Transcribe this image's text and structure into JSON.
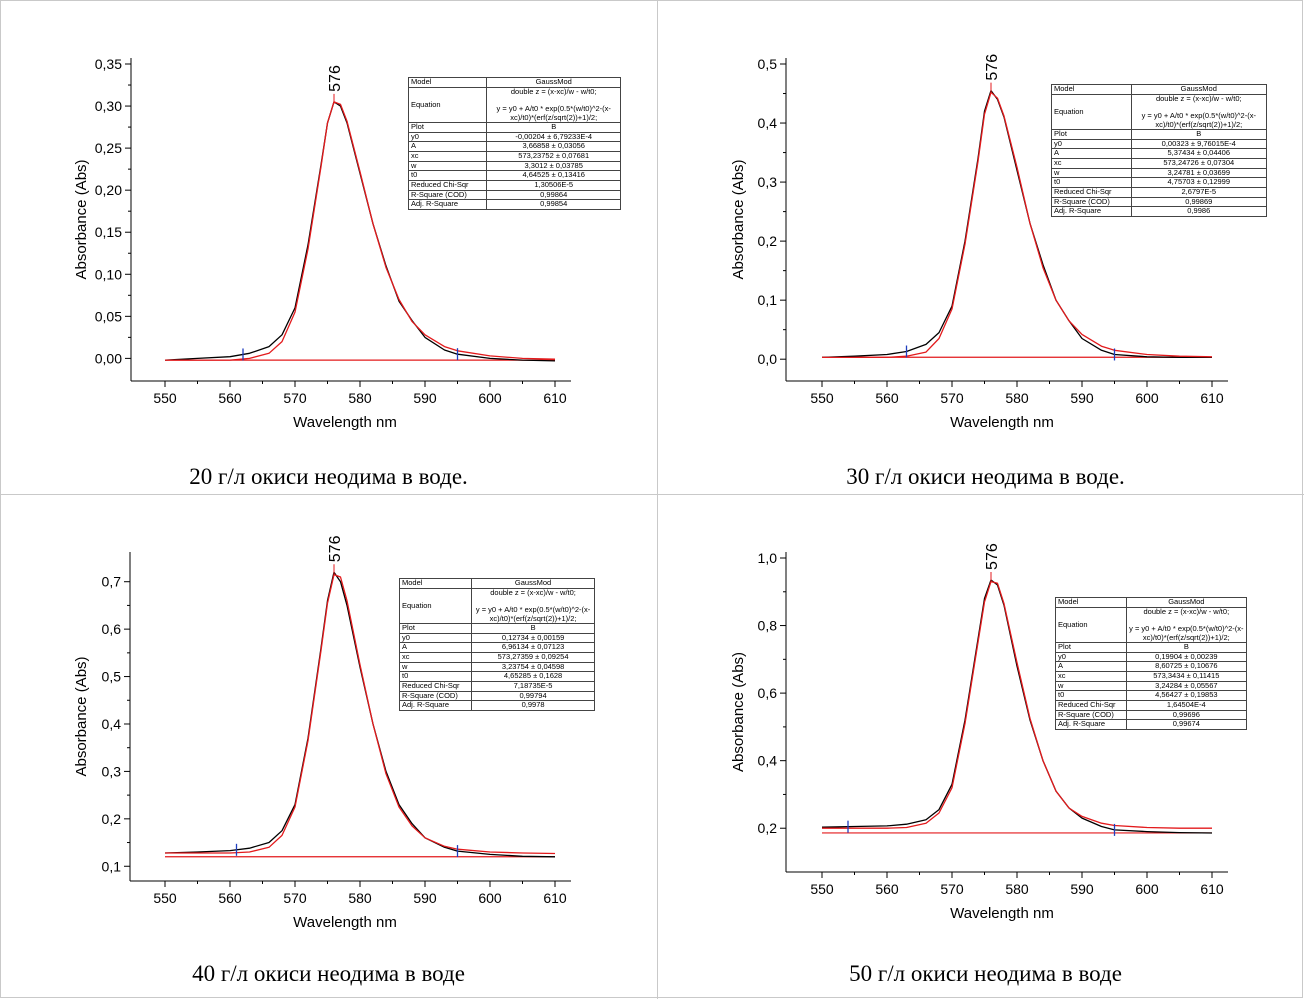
{
  "chart_data": [
    {
      "type": "line",
      "caption": "20 г/л окиси неодима в воде.",
      "xlabel": "Wavelength nm",
      "ylabel": "Absorbance (Abs)",
      "xlim": [
        550,
        610
      ],
      "ylim": [
        -0.015,
        0.35
      ],
      "xticks": [
        "550",
        "560",
        "570",
        "580",
        "590",
        "600",
        "610"
      ],
      "yticks": [
        "0,00",
        "0,05",
        "0,10",
        "0,15",
        "0,20",
        "0,25",
        "0,30",
        "0,35"
      ],
      "ytick_values": [
        0,
        0.05,
        0.1,
        0.15,
        0.2,
        0.25,
        0.3,
        0.35
      ],
      "peak_label": "576",
      "peak_x": 576,
      "baseline": -0.00204,
      "baseline_x": [
        562,
        595
      ],
      "series": [
        {
          "color": "#000000",
          "x": [
            550,
            555,
            560,
            563,
            566,
            568,
            570,
            572,
            574,
            575,
            576,
            577,
            578,
            580,
            582,
            584,
            586,
            588,
            590,
            593,
            595,
            600,
            605,
            610
          ],
          "y": [
            -0.002,
            0.0,
            0.002,
            0.006,
            0.014,
            0.028,
            0.06,
            0.135,
            0.23,
            0.28,
            0.305,
            0.3,
            0.28,
            0.22,
            0.16,
            0.11,
            0.068,
            0.045,
            0.025,
            0.01,
            0.005,
            0.0,
            -0.002,
            -0.003
          ]
        },
        {
          "color": "#e31a1c",
          "x": [
            550,
            560,
            563,
            566,
            568,
            570,
            572,
            574,
            575,
            576,
            577,
            578,
            580,
            582,
            584,
            586,
            588,
            590,
            593,
            595,
            600,
            605,
            610
          ],
          "y": [
            -0.002,
            -0.002,
            0.0,
            0.006,
            0.02,
            0.055,
            0.13,
            0.228,
            0.28,
            0.305,
            0.302,
            0.282,
            0.222,
            0.16,
            0.108,
            0.07,
            0.044,
            0.028,
            0.014,
            0.009,
            0.003,
            0.0,
            -0.001
          ]
        }
      ],
      "fit_table": [
        [
          "Model",
          "GaussMod"
        ],
        [
          "Equation",
          "double z = (x-xc)/w - w/t0;\n\ny = y0 + A/t0 * exp(0.5*(w/t0)^2-(x-xc)/t0)*(erf(z/sqrt(2))+1)/2;"
        ],
        [
          "Plot",
          "B"
        ],
        [
          "y0",
          "-0,00204 ± 6,79233E-4"
        ],
        [
          "A",
          "3,66858 ± 0,03056"
        ],
        [
          "xc",
          "573,23752 ± 0,07681"
        ],
        [
          "w",
          "3,3012 ± 0,03785"
        ],
        [
          "t0",
          "4,64525 ± 0,13416"
        ],
        [
          "Reduced Chi-Sqr",
          "1,30506E-5"
        ],
        [
          "R-Square (COD)",
          "0,99864"
        ],
        [
          "Adj. R-Square",
          "0,99854"
        ]
      ]
    },
    {
      "type": "line",
      "caption": "30 г/л окиси неодима в воде.",
      "xlabel": "Wavelength nm",
      "ylabel": "Absorbance (Abs)",
      "xlim": [
        550,
        610
      ],
      "ylim": [
        -0.02,
        0.5
      ],
      "xticks": [
        "550",
        "560",
        "570",
        "580",
        "590",
        "600",
        "610"
      ],
      "yticks": [
        "0,0",
        "0,1",
        "0,2",
        "0,3",
        "0,4",
        "0,5"
      ],
      "ytick_values": [
        0,
        0.1,
        0.2,
        0.3,
        0.4,
        0.5
      ],
      "peak_label": "576",
      "peak_x": 576,
      "baseline": 0.00323,
      "baseline_x": [
        563,
        595
      ],
      "series": [
        {
          "color": "#000000",
          "x": [
            550,
            555,
            560,
            563,
            566,
            568,
            570,
            572,
            574,
            575,
            576,
            577,
            578,
            580,
            582,
            584,
            586,
            588,
            590,
            593,
            595,
            600,
            605,
            610
          ],
          "y": [
            0.003,
            0.005,
            0.008,
            0.013,
            0.025,
            0.045,
            0.09,
            0.2,
            0.34,
            0.42,
            0.455,
            0.44,
            0.41,
            0.32,
            0.23,
            0.16,
            0.1,
            0.065,
            0.035,
            0.015,
            0.008,
            0.004,
            0.003,
            0.003
          ]
        },
        {
          "color": "#e31a1c",
          "x": [
            550,
            560,
            563,
            566,
            568,
            570,
            572,
            574,
            575,
            576,
            577,
            578,
            580,
            582,
            584,
            586,
            588,
            590,
            593,
            595,
            600,
            605,
            610
          ],
          "y": [
            0.003,
            0.003,
            0.005,
            0.012,
            0.035,
            0.085,
            0.195,
            0.335,
            0.415,
            0.452,
            0.442,
            0.412,
            0.325,
            0.23,
            0.155,
            0.1,
            0.065,
            0.042,
            0.022,
            0.015,
            0.008,
            0.005,
            0.004
          ]
        }
      ],
      "fit_table": [
        [
          "Model",
          "GaussMod"
        ],
        [
          "Equation",
          "double z = (x-xc)/w - w/t0;\n\ny = y0 + A/t0 * exp(0.5*(w/t0)^2-(x-xc)/t0)*(erf(z/sqrt(2))+1)/2;"
        ],
        [
          "Plot",
          "B"
        ],
        [
          "y0",
          "0,00323 ± 9,76015E-4"
        ],
        [
          "A",
          "5,37434 ± 0,04406"
        ],
        [
          "xc",
          "573,24726 ± 0,07304"
        ],
        [
          "w",
          "3,24781 ± 0,03699"
        ],
        [
          "t0",
          "4,75703 ± 0,12999"
        ],
        [
          "Reduced Chi-Sqr",
          "2,6797E-5"
        ],
        [
          "R-Square (COD)",
          "0,99869"
        ],
        [
          "Adj. R-Square",
          "0,9986"
        ]
      ]
    },
    {
      "type": "line",
      "caption": "40 г/л окиси неодима в воде",
      "xlabel": "Wavelength nm",
      "ylabel": "Absorbance (Abs)",
      "xlim": [
        550,
        610
      ],
      "ylim": [
        0.09,
        0.75
      ],
      "xticks": [
        "550",
        "560",
        "570",
        "580",
        "590",
        "600",
        "610"
      ],
      "yticks": [
        "0,1",
        "0,2",
        "0,3",
        "0,4",
        "0,5",
        "0,6",
        "0,7"
      ],
      "ytick_values": [
        0.1,
        0.2,
        0.3,
        0.4,
        0.5,
        0.6,
        0.7
      ],
      "peak_label": "576",
      "peak_x": 576,
      "baseline": 0.12,
      "baseline_x": [
        561,
        595
      ],
      "series": [
        {
          "color": "#000000",
          "x": [
            550,
            555,
            560,
            563,
            566,
            568,
            570,
            572,
            574,
            575,
            576,
            577,
            578,
            580,
            582,
            584,
            586,
            588,
            590,
            593,
            595,
            600,
            605,
            610
          ],
          "y": [
            0.128,
            0.13,
            0.133,
            0.138,
            0.15,
            0.175,
            0.23,
            0.37,
            0.56,
            0.66,
            0.72,
            0.7,
            0.65,
            0.52,
            0.4,
            0.3,
            0.23,
            0.19,
            0.16,
            0.14,
            0.132,
            0.125,
            0.121,
            0.12
          ]
        },
        {
          "color": "#e31a1c",
          "x": [
            550,
            560,
            563,
            566,
            568,
            570,
            572,
            574,
            575,
            576,
            577,
            578,
            580,
            582,
            584,
            586,
            588,
            590,
            593,
            595,
            600,
            605,
            610
          ],
          "y": [
            0.128,
            0.128,
            0.13,
            0.14,
            0.165,
            0.225,
            0.365,
            0.555,
            0.655,
            0.715,
            0.71,
            0.66,
            0.525,
            0.4,
            0.295,
            0.225,
            0.185,
            0.16,
            0.142,
            0.136,
            0.13,
            0.128,
            0.127
          ]
        }
      ],
      "fit_table": [
        [
          "Model",
          "GaussMod"
        ],
        [
          "Equation",
          "double z = (x-xc)/w - w/t0;\n\ny = y0 + A/t0 * exp(0.5*(w/t0)^2-(x-xc)/t0)*(erf(z/sqrt(2))+1)/2;"
        ],
        [
          "Plot",
          "B"
        ],
        [
          "y0",
          "0,12734 ± 0,00159"
        ],
        [
          "A",
          "6,96134 ± 0,07123"
        ],
        [
          "xc",
          "573,27359 ± 0,09254"
        ],
        [
          "w",
          "3,23754 ± 0,04598"
        ],
        [
          "t0",
          "4,65285 ± 0,1628"
        ],
        [
          "Reduced Chi-Sqr",
          "7,18735E-5"
        ],
        [
          "R-Square (COD)",
          "0,99794"
        ],
        [
          "Adj. R-Square",
          "0,9978"
        ]
      ]
    },
    {
      "type": "line",
      "caption": "50 г/л окиси неодима в воде",
      "xlabel": "Wavelength nm",
      "ylabel": "Absorbance (Abs)",
      "xlim": [
        550,
        610
      ],
      "ylim": [
        0.1,
        1.0
      ],
      "xticks": [
        "550",
        "560",
        "570",
        "580",
        "590",
        "600",
        "610"
      ],
      "yticks": [
        "0,2",
        "0,4",
        "0,6",
        "0,8",
        "1,0"
      ],
      "ytick_values": [
        0.2,
        0.4,
        0.6,
        0.8,
        1.0
      ],
      "peak_label": "576",
      "peak_x": 576,
      "baseline": 0.186,
      "baseline_x": [
        554,
        595
      ],
      "series": [
        {
          "color": "#000000",
          "x": [
            550,
            555,
            560,
            563,
            566,
            568,
            570,
            572,
            574,
            575,
            576,
            577,
            578,
            580,
            582,
            584,
            586,
            588,
            590,
            593,
            595,
            600,
            605,
            610
          ],
          "y": [
            0.203,
            0.205,
            0.207,
            0.212,
            0.225,
            0.255,
            0.33,
            0.52,
            0.76,
            0.88,
            0.935,
            0.92,
            0.86,
            0.68,
            0.52,
            0.4,
            0.31,
            0.26,
            0.23,
            0.205,
            0.195,
            0.19,
            0.187,
            0.186
          ]
        },
        {
          "color": "#e31a1c",
          "x": [
            550,
            560,
            563,
            566,
            568,
            570,
            572,
            574,
            575,
            576,
            577,
            578,
            580,
            582,
            584,
            586,
            588,
            590,
            593,
            595,
            600,
            605,
            610
          ],
          "y": [
            0.2,
            0.2,
            0.202,
            0.215,
            0.245,
            0.32,
            0.51,
            0.75,
            0.87,
            0.93,
            0.925,
            0.865,
            0.69,
            0.525,
            0.4,
            0.31,
            0.26,
            0.235,
            0.215,
            0.208,
            0.202,
            0.2,
            0.2
          ]
        }
      ],
      "fit_table": [
        [
          "Model",
          "GaussMod"
        ],
        [
          "Equation",
          "double z = (x-xc)/w - w/t0;\n\ny = y0 + A/t0 * exp(0.5*(w/t0)^2-(x-xc)/t0)*(erf(z/sqrt(2))+1)/2;"
        ],
        [
          "Plot",
          "B"
        ],
        [
          "y0",
          "0,19904 ± 0,00239"
        ],
        [
          "A",
          "8,60725 ± 0,10676"
        ],
        [
          "xc",
          "573,3434 ± 0,11415"
        ],
        [
          "w",
          "3,24284 ± 0,05567"
        ],
        [
          "t0",
          "4,56427 ± 0,19853"
        ],
        [
          "Reduced Chi-Sqr",
          "1,64504E-4"
        ],
        [
          "R-Square (COD)",
          "0,99696"
        ],
        [
          "Adj. R-Square",
          "0,99674"
        ]
      ]
    }
  ]
}
